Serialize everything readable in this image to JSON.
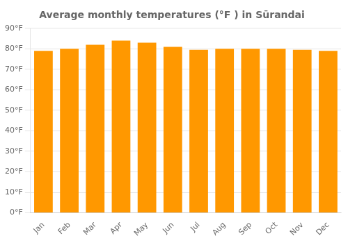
{
  "chart_data": {
    "type": "bar",
    "title": "Average monthly temperatures (°F ) in Sūrandai",
    "categories": [
      "Jan",
      "Feb",
      "Mar",
      "Apr",
      "May",
      "Jun",
      "Jul",
      "Aug",
      "Sep",
      "Oct",
      "Nov",
      "Dec"
    ],
    "values": [
      79,
      80,
      82,
      84,
      83,
      81,
      79.5,
      80,
      80,
      80,
      79.5,
      79
    ],
    "color": "#FF9800",
    "ylim": [
      0,
      90
    ],
    "yticks": [
      {
        "value": 0,
        "label": "0°F"
      },
      {
        "value": 10,
        "label": "10°F"
      },
      {
        "value": 20,
        "label": "20°F"
      },
      {
        "value": 30,
        "label": "30°F"
      },
      {
        "value": 40,
        "label": "40°F"
      },
      {
        "value": 50,
        "label": "50°F"
      },
      {
        "value": 60,
        "label": "60°F"
      },
      {
        "value": 70,
        "label": "70°F"
      },
      {
        "value": 80,
        "label": "80°F"
      },
      {
        "value": 90,
        "label": "90°F"
      }
    ],
    "grid": true
  }
}
